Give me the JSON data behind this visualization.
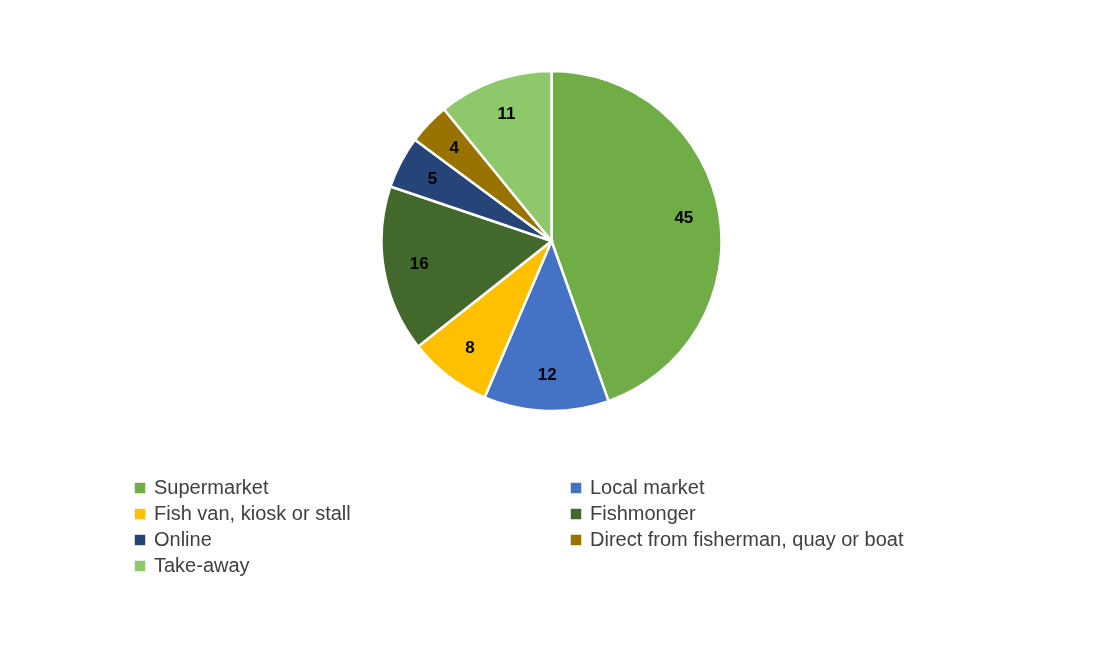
{
  "chart_data": {
    "type": "pie",
    "categories": [
      "Supermarket",
      "Local market",
      "Fish van, kiosk or stall",
      "Fishmonger",
      "Online",
      "Direct from fisherman, quay or boat",
      "Take-away"
    ],
    "values": [
      45,
      12,
      8,
      16,
      5,
      4,
      11
    ],
    "colors": [
      "#70ad47",
      "#4472c4",
      "#ffc000",
      "#43682b",
      "#264478",
      "#997300",
      "#8fc76b"
    ],
    "data_labels": true,
    "legend": "bottom"
  }
}
